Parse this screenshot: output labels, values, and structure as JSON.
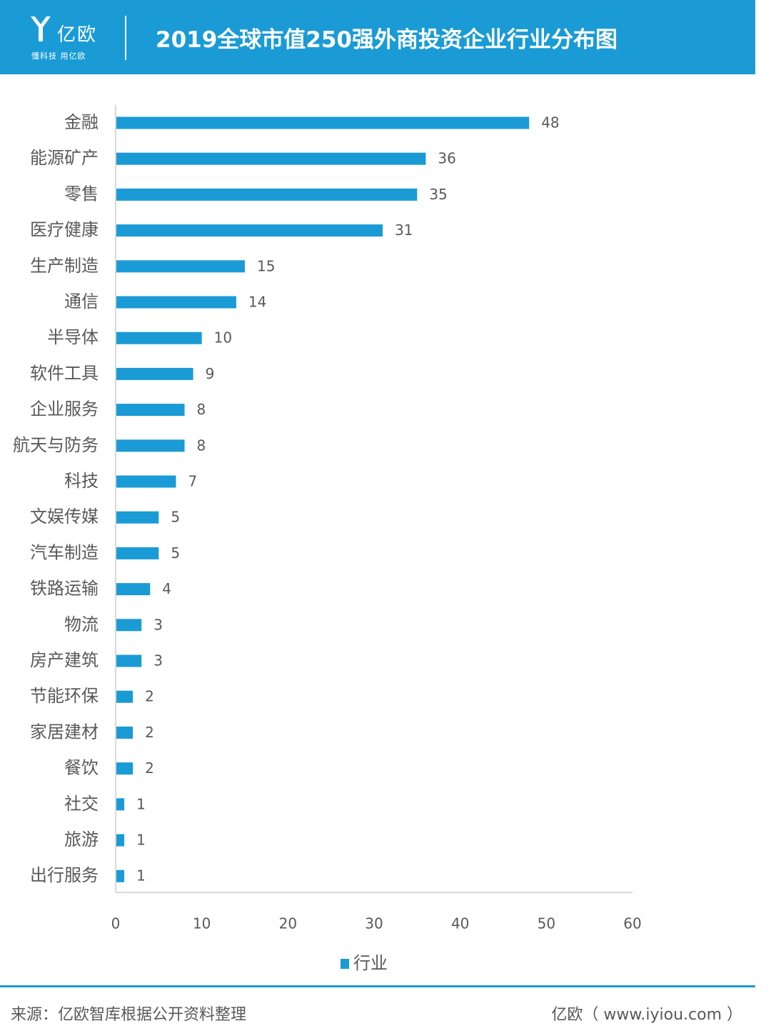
{
  "header": {
    "brand": "亿欧",
    "tagline": "懂科技 用亿欧",
    "title": "2019全球市值250强外商投资企业行业分布图"
  },
  "chart_data": {
    "type": "bar",
    "orientation": "horizontal",
    "categories": [
      "金融",
      "能源矿产",
      "零售",
      "医疗健康",
      "生产制造",
      "通信",
      "半导体",
      "软件工具",
      "企业服务",
      "航天与防务",
      "科技",
      "文娱传媒",
      "汽车制造",
      "铁路运输",
      "物流",
      "房产建筑",
      "节能环保",
      "家居建材",
      "餐饮",
      "社交",
      "旅游",
      "出行服务"
    ],
    "series": [
      {
        "name": "行业",
        "values": [
          48,
          36,
          35,
          31,
          15,
          14,
          10,
          9,
          8,
          8,
          7,
          5,
          5,
          4,
          3,
          3,
          2,
          2,
          2,
          1,
          1,
          1
        ]
      }
    ],
    "xlim": [
      0,
      60
    ],
    "xticks": [
      0,
      10,
      20,
      30,
      40,
      50,
      60
    ],
    "grid": false,
    "legend_position": "bottom",
    "bar_color": "#1a9bd5",
    "data_labels": true
  },
  "footer": {
    "source": "来源：亿欧智库根据公开资料整理",
    "site": "亿欧（ www.iyiou.com ）"
  },
  "colors": {
    "brand_blue": "#1a9bd5",
    "text_gray": "#595959",
    "axis_gray": "#d9d9d9"
  }
}
